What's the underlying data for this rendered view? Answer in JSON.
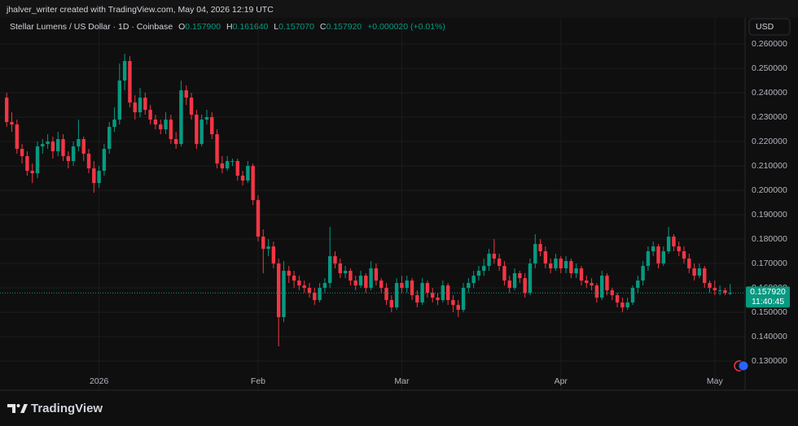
{
  "header": {
    "text": "jhalver_writer created with TradingView.com, May 04, 2026 12:19 UTC"
  },
  "footer": {
    "brand": "TradingView"
  },
  "chart_data": {
    "type": "candlestick",
    "title": "Stellar Lumens / US Dollar · 1D · Coinbase",
    "legend": [
      {
        "label": "O",
        "value": "0.157900"
      },
      {
        "label": "H",
        "value": "0.161640"
      },
      {
        "label": "L",
        "value": "0.157070"
      },
      {
        "label": "C",
        "value": "0.157920"
      }
    ],
    "change": "+0.000020 (+0.01%)",
    "currency": "USD",
    "up_color": "#089981",
    "down_color": "#f23645",
    "grid": true,
    "xlim": [
      -1.3,
      143.9
    ],
    "xticks": [
      {
        "value": 18,
        "label": "2026"
      },
      {
        "value": 49,
        "label": "Feb"
      },
      {
        "value": 77,
        "label": "Mar"
      },
      {
        "value": 108,
        "label": "Apr"
      },
      {
        "value": 138,
        "label": "May"
      }
    ],
    "ylim": [
      0.1247,
      0.2707
    ],
    "yticks": [
      {
        "value": 0.13,
        "label": "0.130000"
      },
      {
        "value": 0.14,
        "label": "0.140000"
      },
      {
        "value": 0.15,
        "label": "0.150000"
      },
      {
        "value": 0.16,
        "label": "0.160000"
      },
      {
        "value": 0.17,
        "label": "0.170000"
      },
      {
        "value": 0.18,
        "label": "0.180000"
      },
      {
        "value": 0.19,
        "label": "0.190000"
      },
      {
        "value": 0.2,
        "label": "0.200000"
      },
      {
        "value": 0.21,
        "label": "0.210000"
      },
      {
        "value": 0.22,
        "label": "0.220000"
      },
      {
        "value": 0.23,
        "label": "0.230000"
      },
      {
        "value": 0.24,
        "label": "0.240000"
      },
      {
        "value": 0.25,
        "label": "0.250000"
      },
      {
        "value": 0.26,
        "label": "0.260000"
      }
    ],
    "last_price": {
      "value": 0.15792,
      "label": "0.157920"
    },
    "countdown": "11:40:45",
    "candles": [
      [
        0.238,
        0.24,
        0.226,
        0.228
      ],
      [
        0.228,
        0.232,
        0.224,
        0.227
      ],
      [
        0.227,
        0.229,
        0.215,
        0.217
      ],
      [
        0.217,
        0.219,
        0.211,
        0.214
      ],
      [
        0.214,
        0.216,
        0.206,
        0.208
      ],
      [
        0.208,
        0.211,
        0.203,
        0.207
      ],
      [
        0.207,
        0.22,
        0.205,
        0.218
      ],
      [
        0.218,
        0.221,
        0.215,
        0.219
      ],
      [
        0.219,
        0.223,
        0.217,
        0.22
      ],
      [
        0.22,
        0.222,
        0.213,
        0.216
      ],
      [
        0.216,
        0.224,
        0.214,
        0.221
      ],
      [
        0.221,
        0.223,
        0.212,
        0.214
      ],
      [
        0.214,
        0.216,
        0.209,
        0.212
      ],
      [
        0.212,
        0.22,
        0.21,
        0.218
      ],
      [
        0.218,
        0.229,
        0.216,
        0.221
      ],
      [
        0.221,
        0.222,
        0.212,
        0.215
      ],
      [
        0.215,
        0.217,
        0.207,
        0.209
      ],
      [
        0.209,
        0.212,
        0.199,
        0.203
      ],
      [
        0.203,
        0.21,
        0.201,
        0.208
      ],
      [
        0.208,
        0.219,
        0.206,
        0.217
      ],
      [
        0.217,
        0.228,
        0.215,
        0.226
      ],
      [
        0.226,
        0.234,
        0.224,
        0.229
      ],
      [
        0.229,
        0.252,
        0.227,
        0.245
      ],
      [
        0.245,
        0.256,
        0.241,
        0.253
      ],
      [
        0.253,
        0.255,
        0.234,
        0.236
      ],
      [
        0.236,
        0.239,
        0.229,
        0.232
      ],
      [
        0.232,
        0.242,
        0.23,
        0.238
      ],
      [
        0.238,
        0.24,
        0.231,
        0.233
      ],
      [
        0.233,
        0.235,
        0.227,
        0.229
      ],
      [
        0.229,
        0.231,
        0.225,
        0.227
      ],
      [
        0.227,
        0.229,
        0.223,
        0.225
      ],
      [
        0.225,
        0.232,
        0.223,
        0.229
      ],
      [
        0.229,
        0.231,
        0.219,
        0.221
      ],
      [
        0.221,
        0.224,
        0.217,
        0.219
      ],
      [
        0.219,
        0.245,
        0.218,
        0.241
      ],
      [
        0.241,
        0.243,
        0.235,
        0.238
      ],
      [
        0.238,
        0.24,
        0.229,
        0.231
      ],
      [
        0.231,
        0.233,
        0.217,
        0.219
      ],
      [
        0.219,
        0.231,
        0.218,
        0.229
      ],
      [
        0.229,
        0.233,
        0.227,
        0.23
      ],
      [
        0.23,
        0.232,
        0.221,
        0.223
      ],
      [
        0.223,
        0.225,
        0.209,
        0.211
      ],
      [
        0.211,
        0.214,
        0.207,
        0.209
      ],
      [
        0.209,
        0.214,
        0.208,
        0.212
      ],
      [
        0.212,
        0.213,
        0.21,
        0.212
      ],
      [
        0.212,
        0.213,
        0.204,
        0.206
      ],
      [
        0.206,
        0.208,
        0.202,
        0.204
      ],
      [
        0.204,
        0.212,
        0.203,
        0.21
      ],
      [
        0.21,
        0.211,
        0.194,
        0.196
      ],
      [
        0.196,
        0.198,
        0.179,
        0.181
      ],
      [
        0.181,
        0.184,
        0.166,
        0.176
      ],
      [
        0.176,
        0.18,
        0.173,
        0.177
      ],
      [
        0.177,
        0.179,
        0.168,
        0.17
      ],
      [
        0.17,
        0.172,
        0.136,
        0.148
      ],
      [
        0.148,
        0.171,
        0.146,
        0.167
      ],
      [
        0.167,
        0.169,
        0.162,
        0.165
      ],
      [
        0.165,
        0.167,
        0.16,
        0.163
      ],
      [
        0.163,
        0.165,
        0.159,
        0.161
      ],
      [
        0.161,
        0.163,
        0.158,
        0.16
      ],
      [
        0.16,
        0.162,
        0.156,
        0.158
      ],
      [
        0.158,
        0.16,
        0.153,
        0.155
      ],
      [
        0.155,
        0.162,
        0.154,
        0.16
      ],
      [
        0.16,
        0.164,
        0.158,
        0.162
      ],
      [
        0.162,
        0.185,
        0.16,
        0.173
      ],
      [
        0.173,
        0.175,
        0.168,
        0.17
      ],
      [
        0.17,
        0.172,
        0.164,
        0.166
      ],
      [
        0.166,
        0.169,
        0.164,
        0.167
      ],
      [
        0.167,
        0.168,
        0.161,
        0.163
      ],
      [
        0.163,
        0.165,
        0.159,
        0.161
      ],
      [
        0.161,
        0.167,
        0.16,
        0.165
      ],
      [
        0.165,
        0.166,
        0.158,
        0.16
      ],
      [
        0.16,
        0.171,
        0.159,
        0.168
      ],
      [
        0.168,
        0.17,
        0.161,
        0.163
      ],
      [
        0.163,
        0.164,
        0.158,
        0.16
      ],
      [
        0.16,
        0.162,
        0.153,
        0.155
      ],
      [
        0.155,
        0.157,
        0.15,
        0.152
      ],
      [
        0.152,
        0.164,
        0.151,
        0.162
      ],
      [
        0.162,
        0.165,
        0.158,
        0.16
      ],
      [
        0.16,
        0.165,
        0.158,
        0.163
      ],
      [
        0.163,
        0.164,
        0.155,
        0.157
      ],
      [
        0.157,
        0.159,
        0.152,
        0.154
      ],
      [
        0.154,
        0.164,
        0.153,
        0.162
      ],
      [
        0.162,
        0.163,
        0.156,
        0.158
      ],
      [
        0.158,
        0.16,
        0.154,
        0.156
      ],
      [
        0.156,
        0.158,
        0.153,
        0.155
      ],
      [
        0.155,
        0.163,
        0.154,
        0.161
      ],
      [
        0.161,
        0.162,
        0.153,
        0.155
      ],
      [
        0.155,
        0.157,
        0.15,
        0.153
      ],
      [
        0.153,
        0.155,
        0.148,
        0.151
      ],
      [
        0.151,
        0.162,
        0.15,
        0.16
      ],
      [
        0.16,
        0.164,
        0.158,
        0.162
      ],
      [
        0.162,
        0.167,
        0.16,
        0.165
      ],
      [
        0.165,
        0.169,
        0.163,
        0.167
      ],
      [
        0.167,
        0.172,
        0.165,
        0.169
      ],
      [
        0.169,
        0.176,
        0.167,
        0.174
      ],
      [
        0.174,
        0.18,
        0.17,
        0.172
      ],
      [
        0.172,
        0.174,
        0.167,
        0.169
      ],
      [
        0.169,
        0.171,
        0.161,
        0.163
      ],
      [
        0.163,
        0.165,
        0.158,
        0.16
      ],
      [
        0.16,
        0.168,
        0.159,
        0.166
      ],
      [
        0.166,
        0.167,
        0.162,
        0.164
      ],
      [
        0.164,
        0.166,
        0.156,
        0.158
      ],
      [
        0.158,
        0.172,
        0.157,
        0.17
      ],
      [
        0.17,
        0.182,
        0.168,
        0.178
      ],
      [
        0.178,
        0.18,
        0.173,
        0.175
      ],
      [
        0.175,
        0.177,
        0.168,
        0.17
      ],
      [
        0.17,
        0.172,
        0.166,
        0.168
      ],
      [
        0.168,
        0.174,
        0.167,
        0.172
      ],
      [
        0.172,
        0.173,
        0.166,
        0.168
      ],
      [
        0.168,
        0.173,
        0.166,
        0.171
      ],
      [
        0.171,
        0.172,
        0.164,
        0.166
      ],
      [
        0.166,
        0.17,
        0.164,
        0.168
      ],
      [
        0.168,
        0.169,
        0.161,
        0.163
      ],
      [
        0.163,
        0.165,
        0.16,
        0.162
      ],
      [
        0.162,
        0.164,
        0.159,
        0.161
      ],
      [
        0.161,
        0.162,
        0.154,
        0.156
      ],
      [
        0.156,
        0.167,
        0.155,
        0.165
      ],
      [
        0.165,
        0.166,
        0.157,
        0.159
      ],
      [
        0.159,
        0.16,
        0.155,
        0.157
      ],
      [
        0.157,
        0.158,
        0.152,
        0.154
      ],
      [
        0.154,
        0.156,
        0.15,
        0.152
      ],
      [
        0.152,
        0.156,
        0.151,
        0.154
      ],
      [
        0.154,
        0.161,
        0.153,
        0.16
      ],
      [
        0.16,
        0.165,
        0.158,
        0.163
      ],
      [
        0.163,
        0.171,
        0.161,
        0.169
      ],
      [
        0.169,
        0.177,
        0.167,
        0.175
      ],
      [
        0.175,
        0.179,
        0.173,
        0.177
      ],
      [
        0.177,
        0.178,
        0.168,
        0.17
      ],
      [
        0.17,
        0.177,
        0.169,
        0.175
      ],
      [
        0.175,
        0.185,
        0.174,
        0.181
      ],
      [
        0.181,
        0.182,
        0.175,
        0.177
      ],
      [
        0.177,
        0.179,
        0.173,
        0.175
      ],
      [
        0.175,
        0.177,
        0.17,
        0.172
      ],
      [
        0.172,
        0.174,
        0.166,
        0.168
      ],
      [
        0.168,
        0.17,
        0.163,
        0.165
      ],
      [
        0.165,
        0.17,
        0.164,
        0.168
      ],
      [
        0.168,
        0.169,
        0.16,
        0.162
      ],
      [
        0.162,
        0.163,
        0.158,
        0.16
      ],
      [
        0.16,
        0.163,
        0.157,
        0.159
      ],
      [
        0.159,
        0.161,
        0.157,
        0.159
      ],
      [
        0.159,
        0.16,
        0.157,
        0.158
      ],
      [
        0.1579,
        0.16164,
        0.15707,
        0.15792
      ]
    ]
  }
}
